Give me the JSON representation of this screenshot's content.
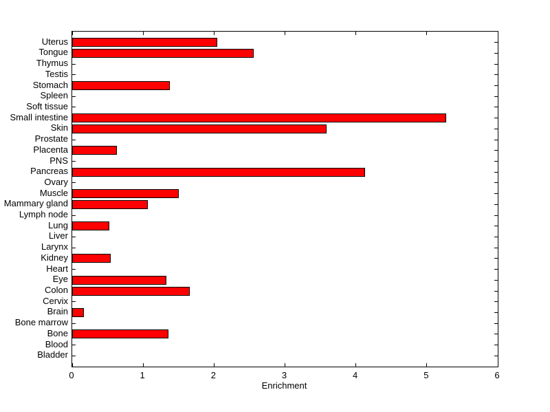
{
  "figure": {
    "background_color": "#ffffff",
    "axis_color": "#000000"
  },
  "chart_data": {
    "type": "bar",
    "orientation": "horizontal",
    "title": "",
    "xlabel": "Enrichment",
    "ylabel": "",
    "xlim": [
      0,
      6
    ],
    "xticks": [
      0,
      1,
      2,
      3,
      4,
      5,
      6
    ],
    "grid": false,
    "legend": false,
    "bar_color": "#ff0000",
    "bar_edge_color": "#000000",
    "category_order": "top-to-bottom",
    "categories": [
      "Uterus",
      "Tongue",
      "Thymus",
      "Testis",
      "Stomach",
      "Spleen",
      "Soft tissue",
      "Small intestine",
      "Skin",
      "Prostate",
      "Placenta",
      "PNS",
      "Pancreas",
      "Ovary",
      "Muscle",
      "Mammary gland",
      "Lymph node",
      "Lung",
      "Liver",
      "Larynx",
      "Kidney",
      "Heart",
      "Eye",
      "Colon",
      "Cervix",
      "Brain",
      "Bone marrow",
      "Bone",
      "Blood",
      "Bladder"
    ],
    "values": [
      2.05,
      2.56,
      0,
      0,
      1.38,
      0,
      0,
      5.27,
      3.59,
      0,
      0.63,
      0,
      4.13,
      0,
      1.5,
      1.07,
      0,
      0.52,
      0,
      0,
      0.54,
      0,
      1.33,
      1.66,
      0,
      0.16,
      0,
      1.36,
      0,
      0
    ]
  }
}
